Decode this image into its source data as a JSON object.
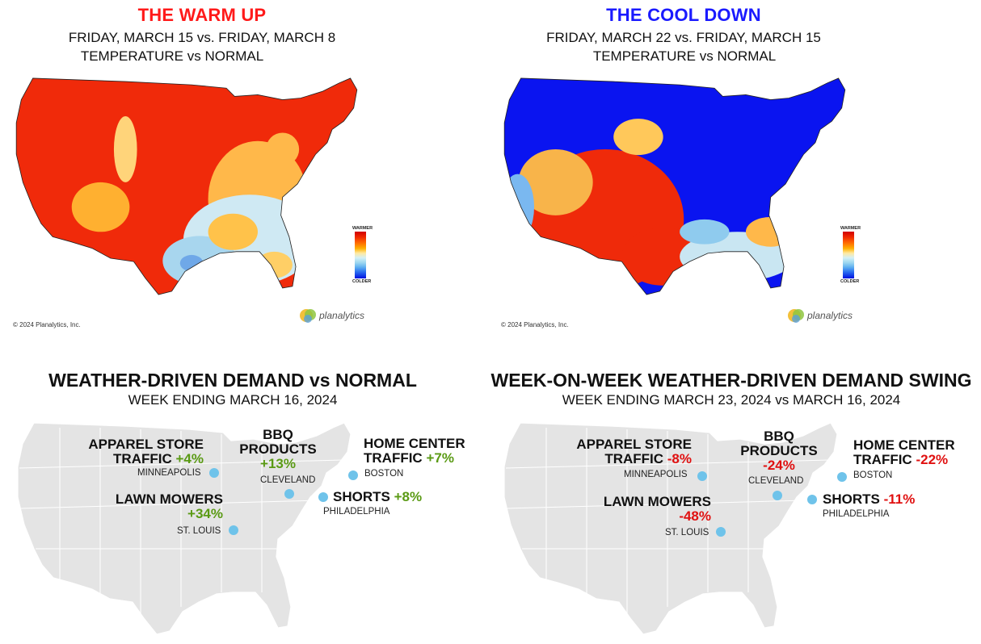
{
  "top_left": {
    "title": "THE WARM UP",
    "title_color": "#ff1a1a",
    "line1": "FRIDAY, MARCH 15 vs. FRIDAY, MARCH 8",
    "line2": "TEMPERATURE vs NORMAL",
    "legend_top": "WARMER",
    "legend_bottom": "COLDER",
    "copyright": "© 2024 Planalytics, Inc.",
    "logo": "planalytics"
  },
  "top_right": {
    "title": "THE COOL DOWN",
    "title_color": "#1a1aff",
    "line1": "FRIDAY, MARCH 22 vs. FRIDAY, MARCH 15",
    "line2": "TEMPERATURE vs NORMAL",
    "legend_top": "WARMER",
    "legend_bottom": "COLDER",
    "copyright": "© 2024 Planalytics, Inc.",
    "logo": "planalytics"
  },
  "bottom_left": {
    "title": "WEATHER-DRIVEN DEMAND vs NORMAL",
    "subtitle": "WEEK ENDING MARCH 16, 2024",
    "apparel": {
      "l1": "APPAREL STORE",
      "l2": "TRAFFIC",
      "value": "+4%",
      "city": "MINNEAPOLIS"
    },
    "bbq": {
      "l1": "BBQ",
      "l2": "PRODUCTS",
      "value": "+13%",
      "city": "CLEVELAND"
    },
    "home": {
      "l1": "HOME CENTER",
      "l2": "TRAFFIC",
      "value": "+7%",
      "city": "BOSTON"
    },
    "lawn": {
      "l1": "LAWN MOWERS",
      "value": "+34%",
      "city": "ST. LOUIS"
    },
    "shorts": {
      "l1": "SHORTS",
      "value": "+8%",
      "city": "PHILADELPHIA"
    }
  },
  "bottom_right": {
    "title": "WEEK-ON-WEEK WEATHER-DRIVEN DEMAND SWING",
    "subtitle": "WEEK ENDING MARCH 23, 2024 vs MARCH 16, 2024",
    "apparel": {
      "l1": "APPAREL STORE",
      "l2": "TRAFFIC",
      "value": "-8%",
      "city": "MINNEAPOLIS"
    },
    "bbq": {
      "l1": "BBQ",
      "l2": "PRODUCTS",
      "value": "-24%",
      "city": "CLEVELAND"
    },
    "home": {
      "l1": "HOME CENTER",
      "l2": "TRAFFIC",
      "value": "-22%",
      "city": "BOSTON"
    },
    "lawn": {
      "l1": "LAWN MOWERS",
      "value": "-48%",
      "city": "ST. LOUIS"
    },
    "shorts": {
      "l1": "SHORTS",
      "value": "-11%",
      "city": "PHILADELPHIA"
    }
  },
  "colors": {
    "positive": "#5a9a14",
    "negative": "#e01010",
    "city_dot": "#6fc3ea",
    "map_gray": "#e4e4e4"
  }
}
